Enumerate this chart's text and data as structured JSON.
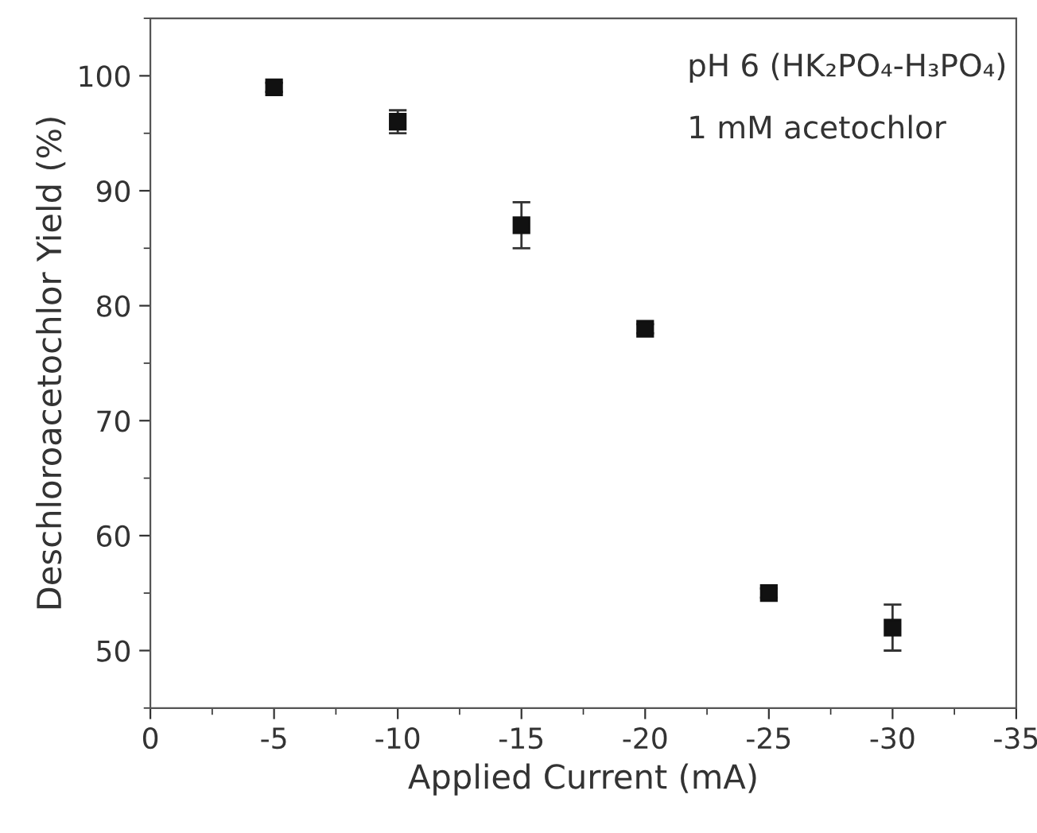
{
  "chart_data": {
    "type": "scatter",
    "xlabel": "Applied Current (mA)",
    "ylabel": "Deschloroacetochlor Yield (%)",
    "annotations": [
      "pH 6 (HK₂PO₄-H₃PO₄)",
      "1 mM acetochlor"
    ],
    "x": [
      -5,
      -10,
      -15,
      -20,
      -25,
      -30
    ],
    "series": [
      {
        "color": "#111111",
        "values": [
          99,
          96,
          87,
          78,
          55,
          52
        ],
        "errors": [
          0.4,
          1,
          2,
          0.4,
          0.4,
          2
        ]
      }
    ],
    "xlim": [
      0,
      -35
    ],
    "xticks": [
      0,
      -5,
      -10,
      -15,
      -20,
      -25,
      -30,
      -35
    ],
    "ylim": [
      45,
      105
    ],
    "yticks": [
      50,
      60,
      70,
      80,
      90,
      100
    ],
    "marker": "square",
    "grid": false,
    "legend": false
  }
}
